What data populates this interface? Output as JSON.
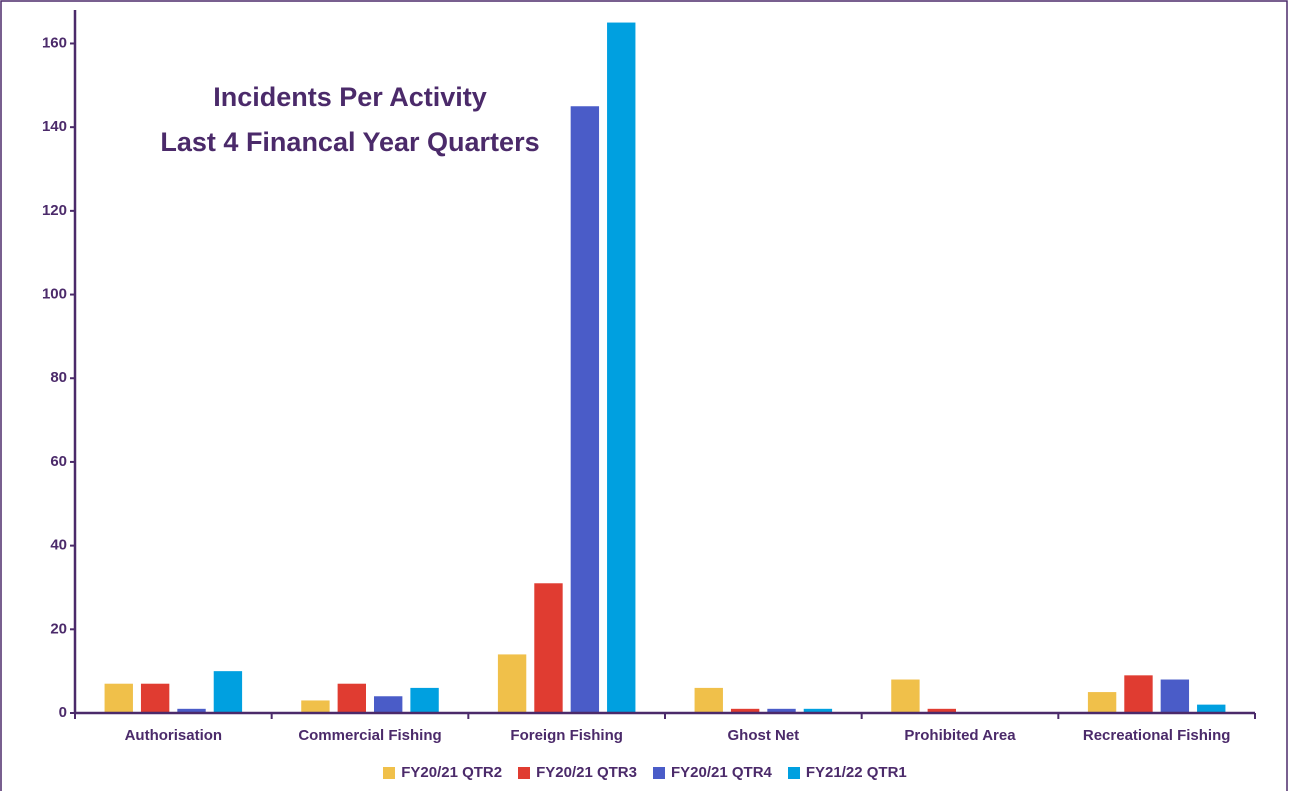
{
  "chart_data": {
    "type": "bar",
    "title": [
      "Incidents Per Activity",
      "Last 4 Financal Year Quarters"
    ],
    "categories": [
      "Authorisation",
      "Commercial Fishing",
      "Foreign Fishing",
      "Ghost Net",
      "Prohibited Area",
      "Recreational Fishing"
    ],
    "series": [
      {
        "name": "FY20/21 QTR2",
        "color": "#f0c04a",
        "values": [
          7,
          3,
          14,
          6,
          8,
          5
        ]
      },
      {
        "name": "FY20/21 QTR3",
        "color": "#e03c31",
        "values": [
          7,
          7,
          31,
          1,
          1,
          9
        ]
      },
      {
        "name": "FY20/21 QTR4",
        "color": "#4a5cc8",
        "values": [
          1,
          4,
          145,
          1,
          0,
          8
        ]
      },
      {
        "name": "FY21/22 QTR1",
        "color": "#00a0e0",
        "values": [
          10,
          6,
          165,
          1,
          0,
          2
        ]
      }
    ],
    "ylim": [
      0,
      168
    ],
    "yticks": [
      0,
      20,
      40,
      60,
      80,
      100,
      120,
      140,
      160
    ],
    "grid": false,
    "legend": "bottom"
  }
}
